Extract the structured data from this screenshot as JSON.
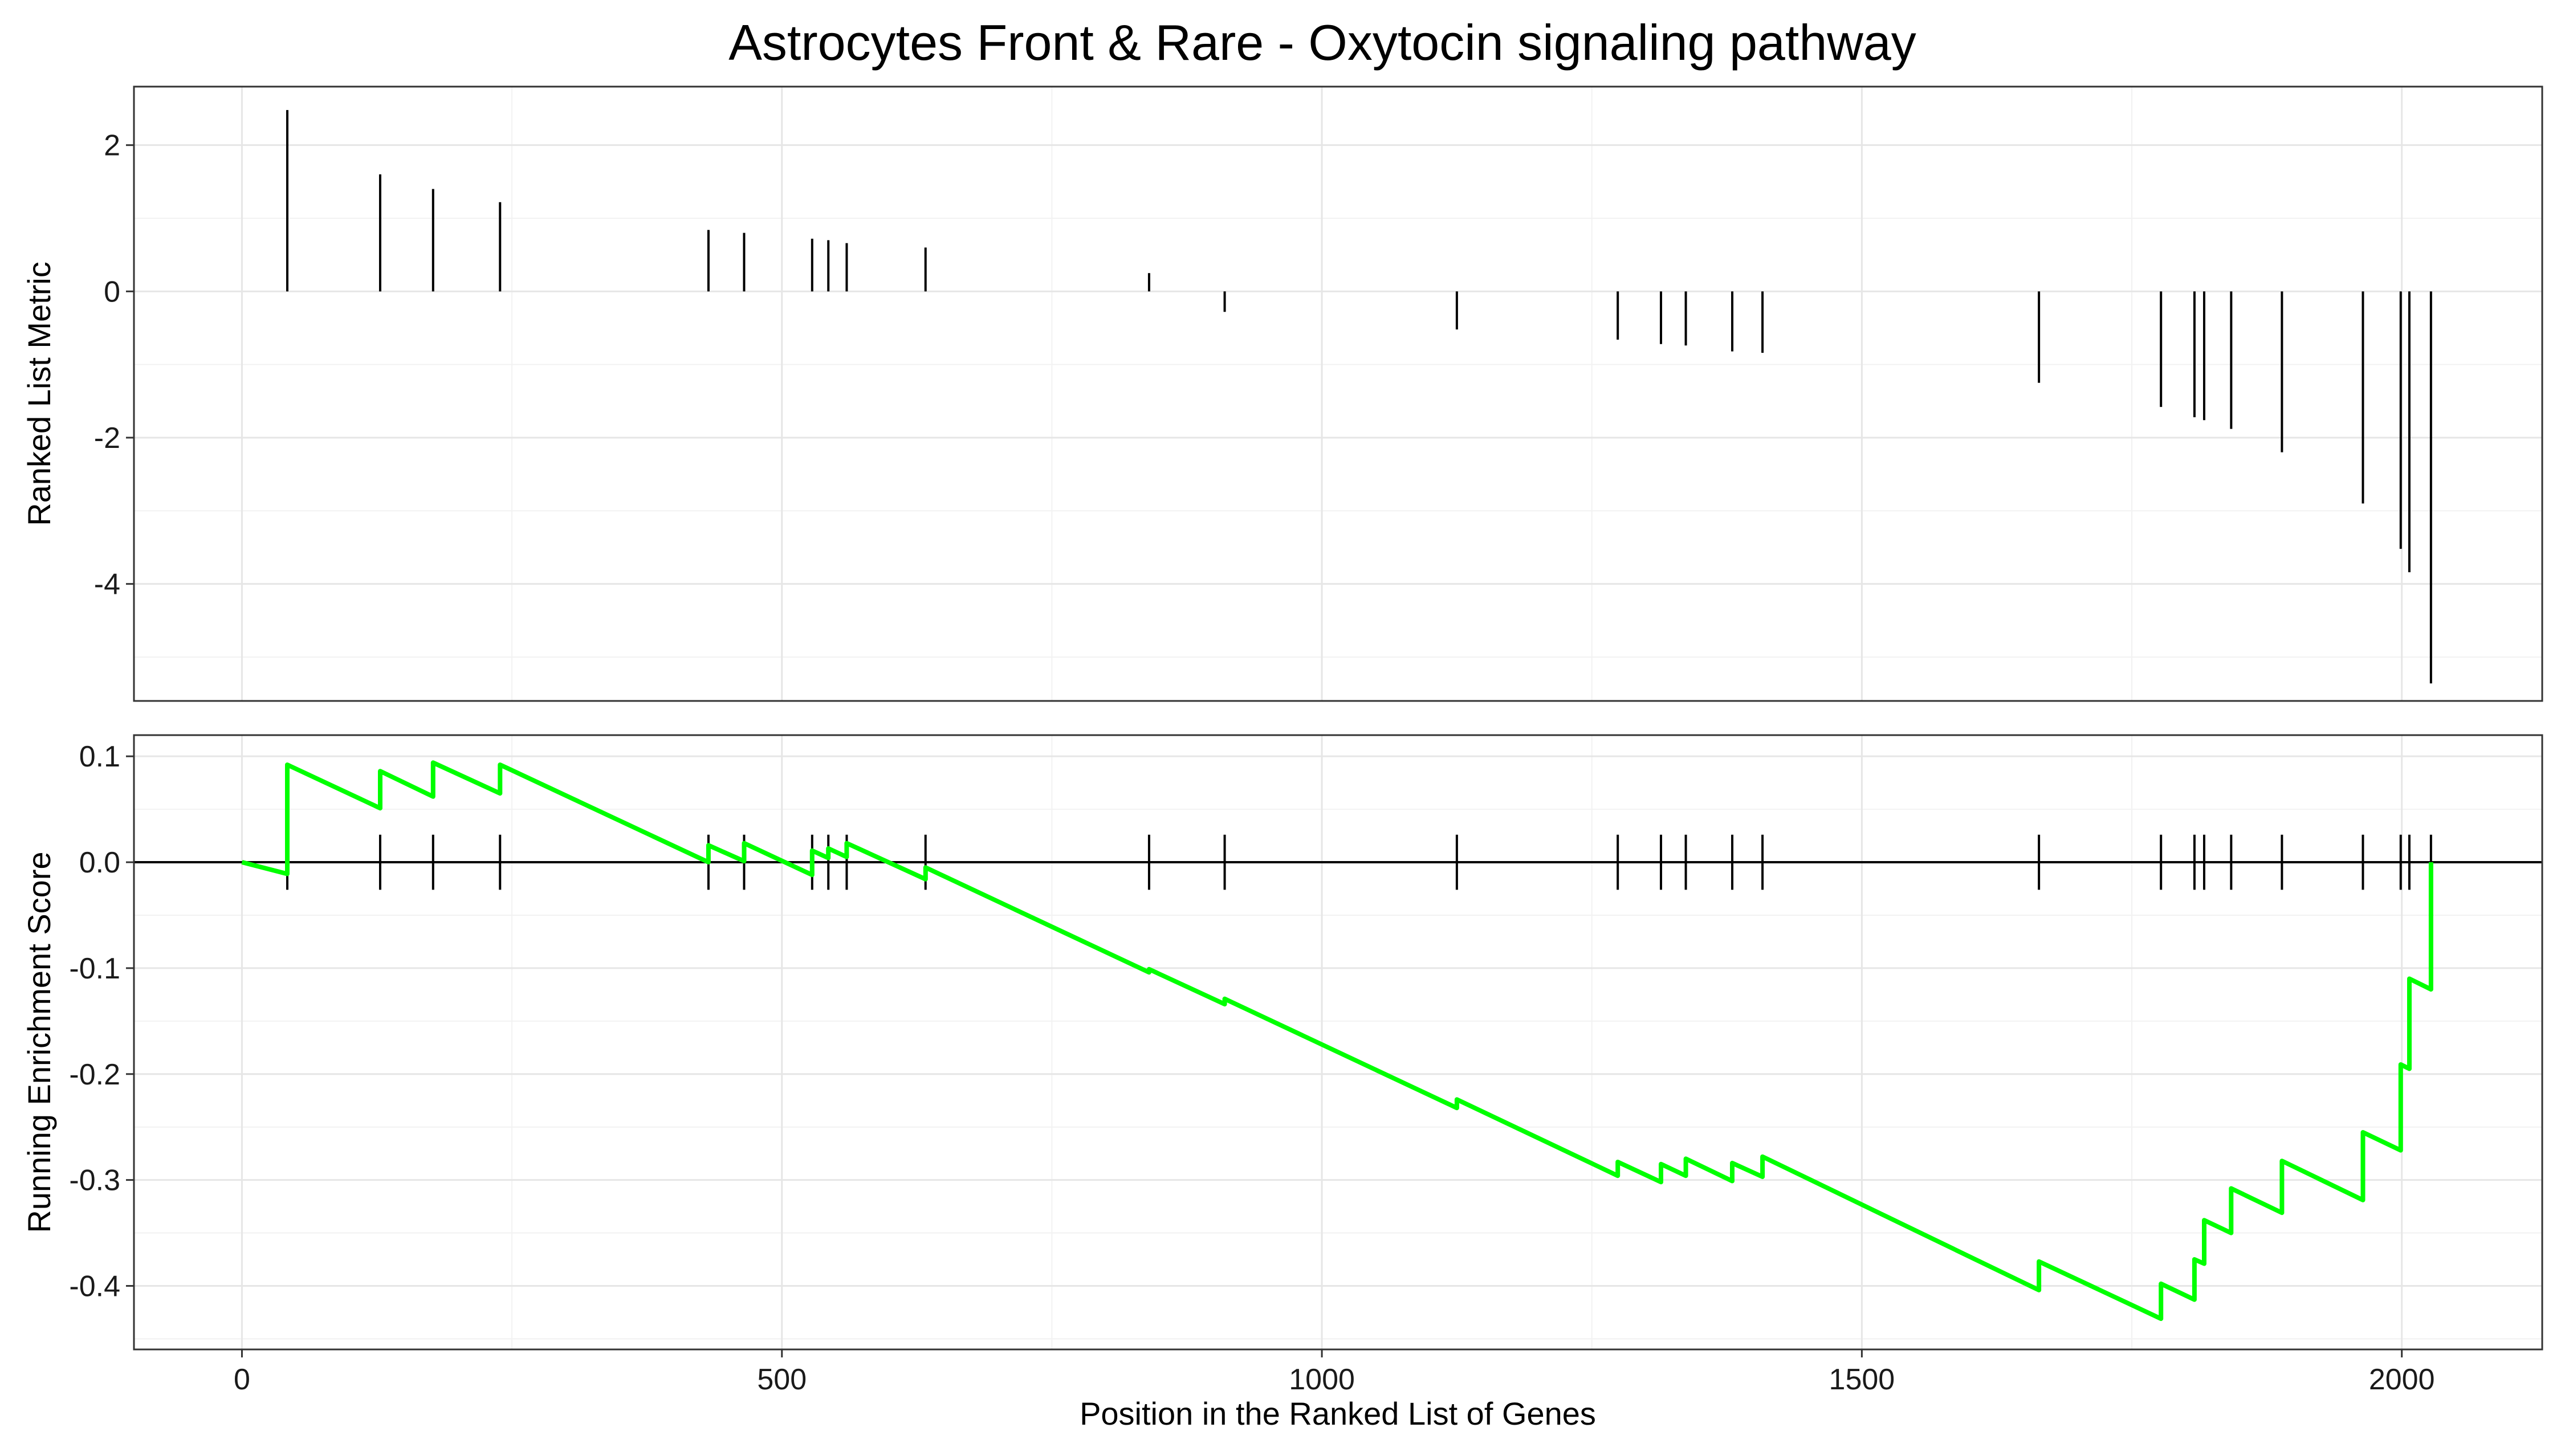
{
  "chart_data": [
    {
      "type": "bar",
      "title": "Astrocytes Front & Rare - Oxytocin signaling pathway",
      "ylabel": "Ranked List Metric",
      "xlim": [
        -100,
        2130
      ],
      "ylim": [
        -5.6,
        2.8
      ],
      "y_ticks": [
        2,
        0,
        -2,
        -4
      ],
      "y_tick_labels": [
        "2",
        "0",
        "-2",
        "-4"
      ],
      "x_gridlines": [
        0,
        500,
        1000,
        1500,
        2000
      ],
      "grid": true,
      "x": [
        42,
        128,
        177,
        239,
        432,
        465,
        528,
        543,
        560,
        633,
        840,
        910,
        1125,
        1274,
        1314,
        1337,
        1380,
        1408,
        1664,
        1777,
        1808,
        1817,
        1842,
        1889,
        1964,
        1999,
        2007,
        2027
      ],
      "values": [
        2.48,
        1.6,
        1.4,
        1.22,
        0.84,
        0.8,
        0.72,
        0.7,
        0.66,
        0.6,
        0.25,
        -0.28,
        -0.52,
        -0.66,
        -0.72,
        -0.74,
        -0.82,
        -0.84,
        -1.25,
        -1.58,
        -1.72,
        -1.76,
        -1.88,
        -2.2,
        -2.9,
        -3.52,
        -3.84,
        -5.36
      ]
    },
    {
      "type": "line",
      "ylabel": "Running Enrichment Score",
      "xlabel": "Position in the Ranked List of Genes",
      "xlim": [
        -100,
        2130
      ],
      "ylim": [
        -0.46,
        0.12
      ],
      "y_ticks": [
        0.1,
        0.0,
        -0.1,
        -0.2,
        -0.3,
        -0.4
      ],
      "y_tick_labels": [
        "0.1",
        "0.0",
        "-0.1",
        "-0.2",
        "-0.3",
        "-0.4"
      ],
      "x_ticks": [
        0,
        500,
        1000,
        1500,
        2000
      ],
      "x_tick_labels": [
        "0",
        "500",
        "1000",
        "1500",
        "2000"
      ],
      "grid": true,
      "zero_line": true,
      "line_color": "#00ff00",
      "hits": [
        42,
        128,
        177,
        239,
        432,
        465,
        528,
        543,
        560,
        633,
        840,
        910,
        1125,
        1274,
        1314,
        1337,
        1380,
        1408,
        1664,
        1777,
        1808,
        1817,
        1842,
        1889,
        1964,
        1999,
        2007,
        2027
      ],
      "series": [
        {
          "x": [
            0,
            42,
            42,
            128,
            128,
            177,
            177,
            239,
            239,
            432,
            432,
            465,
            465,
            528,
            528,
            543,
            543,
            560,
            560,
            633,
            633,
            840,
            840,
            910,
            910,
            1125,
            1125,
            1274,
            1274,
            1314,
            1314,
            1337,
            1337,
            1380,
            1380,
            1408,
            1408,
            1664,
            1664,
            1777,
            1777,
            1808,
            1808,
            1817,
            1817,
            1842,
            1842,
            1889,
            1889,
            1964,
            1964,
            1999,
            1999,
            2007,
            2007,
            2027,
            2027
          ],
          "values": [
            0.0,
            -0.011,
            0.092,
            0.051,
            0.086,
            0.062,
            0.094,
            0.065,
            0.092,
            0.0,
            0.016,
            0.001,
            0.018,
            -0.012,
            0.011,
            0.004,
            0.013,
            0.005,
            0.018,
            -0.016,
            -0.005,
            -0.104,
            -0.101,
            -0.134,
            -0.129,
            -0.232,
            -0.224,
            -0.296,
            -0.283,
            -0.302,
            -0.285,
            -0.296,
            -0.28,
            -0.301,
            -0.284,
            -0.297,
            -0.278,
            -0.404,
            -0.377,
            -0.431,
            -0.398,
            -0.413,
            -0.375,
            -0.379,
            -0.338,
            -0.35,
            -0.308,
            -0.331,
            -0.282,
            -0.319,
            -0.255,
            -0.272,
            -0.191,
            -0.195,
            -0.11,
            -0.12,
            0.0
          ]
        }
      ]
    }
  ]
}
